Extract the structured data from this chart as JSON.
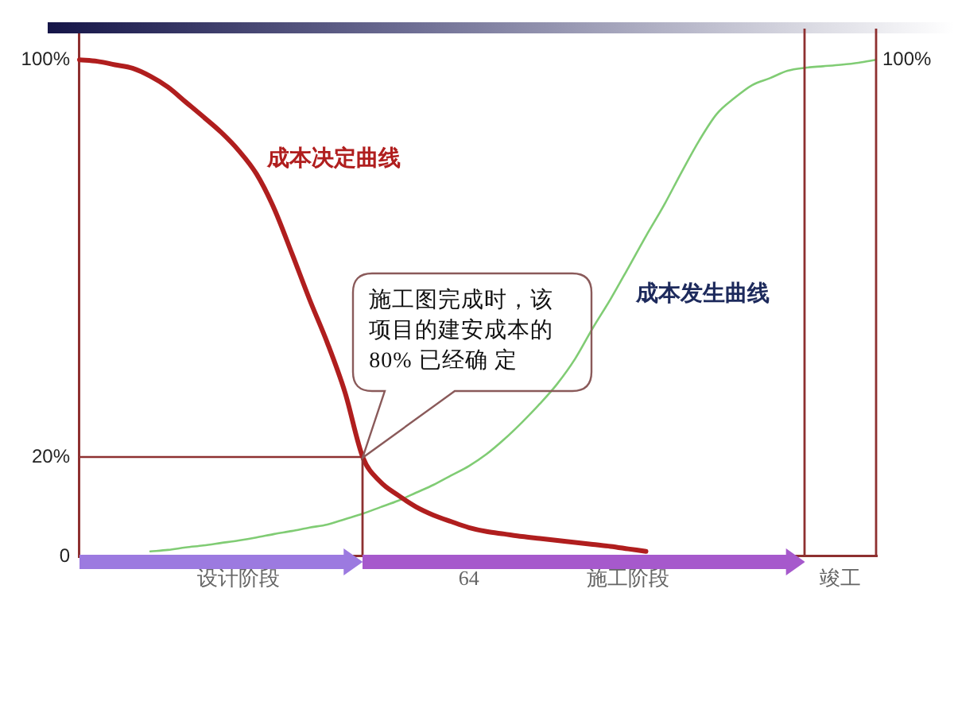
{
  "chart_data": {
    "type": "line",
    "categories": [
      null,
      null,
      null,
      null,
      null,
      null,
      null,
      null,
      null,
      "设计阶段",
      null,
      null,
      null,
      null,
      null,
      null,
      null,
      null,
      null,
      null,
      null,
      null,
      "64",
      null,
      null,
      null,
      null,
      null,
      null,
      null,
      null,
      "施工阶段",
      null,
      null,
      null,
      null,
      null,
      null,
      null,
      null,
      null,
      null,
      null,
      "竣工",
      null,
      null
    ],
    "series": [
      {
        "name": "成本决定曲线",
        "color": "#b01e1e",
        "values": [
          100,
          99.7,
          99,
          98.3,
          96.7,
          94.5,
          91.5,
          88.5,
          85.4,
          81.7,
          77,
          70,
          61,
          51.7,
          43,
          33,
          20,
          15,
          12.3,
          10,
          8.3,
          7,
          5.8,
          5,
          4.5,
          4,
          3.6,
          3.2,
          2.8,
          2.4,
          2,
          1.5,
          1,
          null,
          null,
          null,
          null,
          null,
          null,
          null,
          null,
          null,
          null,
          null,
          null,
          null
        ]
      },
      {
        "name": "成本发生曲线",
        "color": "#80cc74",
        "values": [
          null,
          null,
          null,
          null,
          1,
          1.3,
          1.8,
          2.2,
          2.7,
          3.2,
          3.8,
          4.5,
          5.1,
          5.8,
          6.4,
          7.5,
          8.6,
          9.9,
          11.2,
          12.8,
          14.4,
          16.3,
          18.2,
          20.6,
          23.6,
          27,
          30.7,
          34.8,
          39.8,
          46,
          51.8,
          58.1,
          64.5,
          70.6,
          77.3,
          83.7,
          89.1,
          92.3,
          94.9,
          96.3,
          97.8,
          98.4,
          98.7,
          99,
          99.4,
          100
        ]
      }
    ],
    "ylim": [
      0,
      105
    ],
    "yticks": [
      0,
      {
        "value": 20,
        "label": "20%"
      },
      {
        "value": 100,
        "label": "100%"
      }
    ],
    "ref_lines": [
      {
        "axis": "y",
        "value": 20,
        "color": "#8e3030"
      }
    ],
    "annotations": [
      "施工图完成时，该项目的建安成本的80% 已经确 定",
      "100%"
    ],
    "marker": "none",
    "line_style": "solid"
  }
}
